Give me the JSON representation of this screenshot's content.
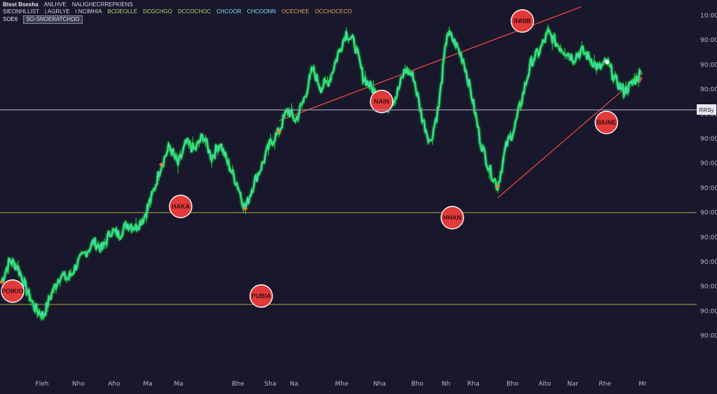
{
  "header": {
    "title": "Btest Bsexha",
    "line1_items": [
      "ANLHVE",
      "NALIGHECRREPKIENS"
    ],
    "line2_items": [
      "SIEONHLLIST",
      "| AGRLYE",
      "l NCIMHIA",
      "BCDEOLLE",
      "DCGCHGO",
      "DCCOCHOC",
      "CHCOOR",
      "CHCOONN",
      "OCECHEE",
      "OCCHOCECO"
    ],
    "symbol": "SOE6",
    "badge": "SO-SNOERATCHOO"
  },
  "chart_data": {
    "type": "line",
    "x_ticks": [
      "Fleh",
      "Nho",
      "Aho",
      "Ma",
      "Ma",
      "Bhe",
      "Sha",
      "Na",
      "Mhe",
      "Nha",
      "Bho",
      "Nh",
      "Rha",
      "Bho",
      "Alto",
      "Nar",
      "Rhe",
      "Mr"
    ],
    "y_ticks": [
      "10:00",
      "90:00",
      "90:00",
      "90:00",
      "90:00",
      "90:00",
      "90:00",
      "90:00",
      "90:00",
      "90:00",
      "90:00",
      "90:00",
      "90:00",
      "90:00"
    ],
    "ylim": [
      0,
      100
    ],
    "series": [
      {
        "values": [
          26,
          32,
          30,
          24,
          19,
          17,
          23,
          28,
          27,
          31,
          34,
          37,
          35,
          40,
          39,
          42,
          41,
          44,
          50,
          58,
          63,
          58,
          64,
          62,
          66,
          60,
          64,
          58,
          53,
          46,
          53,
          58,
          64,
          67,
          73,
          70,
          76,
          84,
          79,
          81,
          88,
          94,
          91,
          82,
          79,
          76,
          74,
          77,
          84,
          82,
          71,
          64,
          74,
          94,
          91,
          86,
          76,
          64,
          57,
          52,
          63,
          68,
          77,
          86,
          89,
          94,
          91,
          89,
          87,
          89,
          87,
          84,
          86,
          81,
          78,
          80,
          83
        ]
      }
    ],
    "annotations": [
      {
        "label": "POIKIO",
        "kind": "low"
      },
      {
        "label": "HAKA",
        "kind": "high"
      },
      {
        "label": "PUBIA",
        "kind": "low"
      },
      {
        "label": "NAIN",
        "kind": "high"
      },
      {
        "label": "HHAN",
        "kind": "low"
      },
      {
        "label": "INNIB",
        "kind": "high"
      },
      {
        "label": "BIUNE",
        "kind": "point"
      }
    ],
    "current_price_label": "RRSy",
    "colors": {
      "background": "#18172b",
      "price_line": "#22e04a",
      "price_line_glow": "#5fd0ff",
      "horizontal_line": "#8f8a3c",
      "current_line": "#9a9ab2",
      "trend_line": "#e0443a",
      "annotation_fill": "#e23a3a",
      "annotation_text": "#3a1010",
      "marker": "#ff7a1a"
    }
  }
}
